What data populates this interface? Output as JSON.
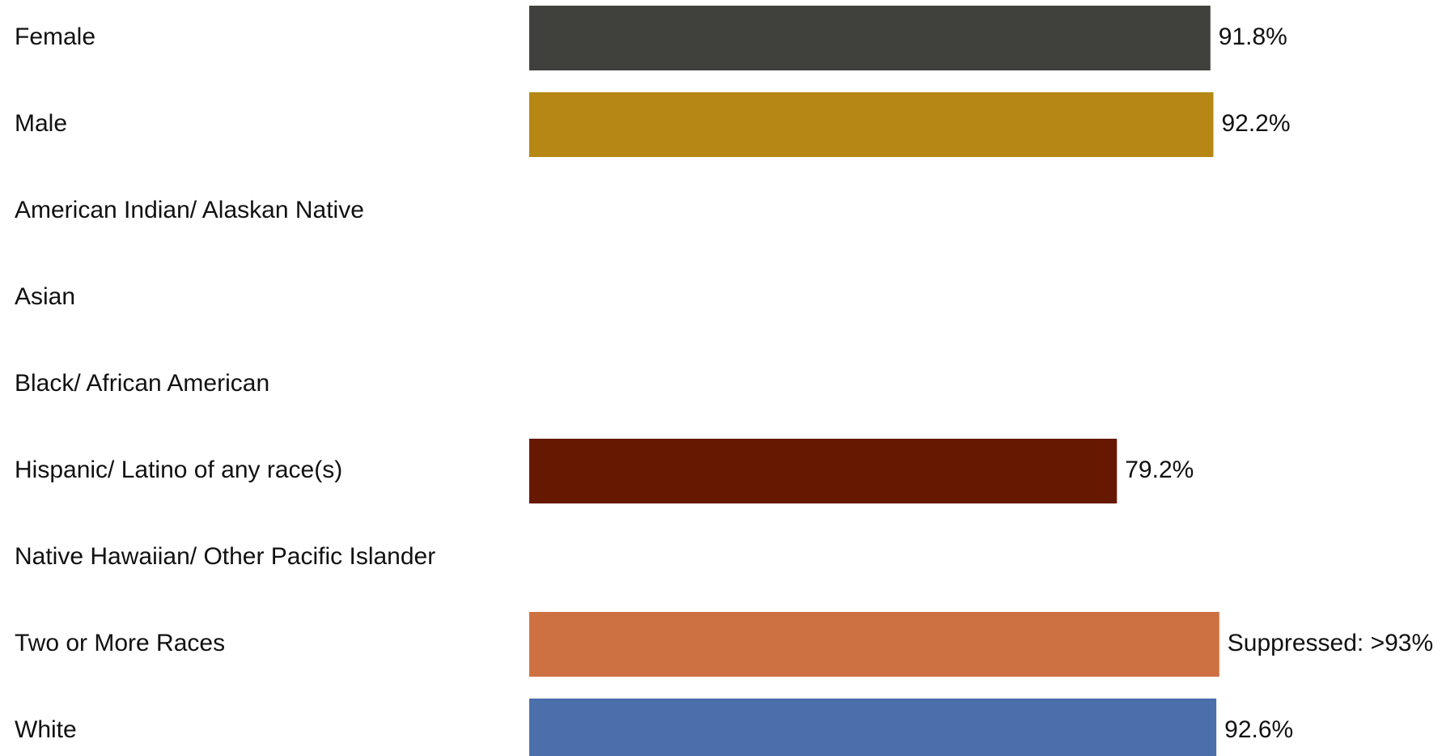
{
  "chart_data": {
    "type": "bar",
    "orientation": "horizontal",
    "title": "",
    "xlabel": "",
    "ylabel": "",
    "xlim": [
      0,
      100
    ],
    "grid": false,
    "legend": "none",
    "categories": [
      "Female",
      "Male",
      "American Indian/ Alaskan Native",
      "Asian",
      "Black/ African American",
      "Hispanic/ Latino of any race(s)",
      "Native Hawaiian/ Other Pacific Islander",
      "Two or More Races",
      "White"
    ],
    "values": [
      91.8,
      92.2,
      null,
      null,
      null,
      79.2,
      null,
      93,
      92.6
    ],
    "data_labels": [
      "91.8%",
      "92.2%",
      "",
      "",
      "",
      "79.2%",
      "",
      "Suppressed: >93%",
      "92.6%"
    ],
    "colors": [
      "#40403c",
      "#b78716",
      "",
      "",
      "",
      "#671800",
      "",
      "#cd7143",
      "#4a6fab"
    ]
  }
}
